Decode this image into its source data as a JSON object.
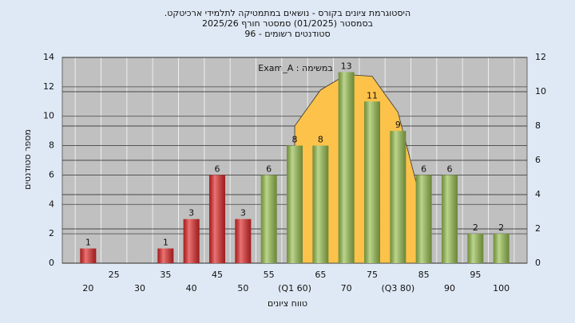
{
  "chart_data": {
    "type": "bar",
    "title": [
      "היסטוגרמת ציונים בקורס - נושאים במתמטיקה לתלמידי ארכיטקט.",
      "בסמסטר  (01/2025)  סמסטר חורף 2025/26",
      "סטודנטים רשומים - 96"
    ],
    "annotation": "במשימה : Exam_A",
    "x_label": "טווח ציונים",
    "y_label": "מספר סטודנטים",
    "categories": [
      "20",
      "25",
      "30",
      "35",
      "40",
      "45",
      "50",
      "55",
      "(Q1 60)",
      "65",
      "70",
      "75",
      "(Q3 80)",
      "85",
      "90",
      "95",
      "100"
    ],
    "values": [
      1,
      null,
      null,
      1,
      3,
      6,
      3,
      6,
      8,
      8,
      13,
      11,
      9,
      6,
      6,
      2,
      2
    ],
    "colors": [
      "#e02828",
      null,
      null,
      "#e02828",
      "#e02828",
      "#e02828",
      "#e02828",
      "#98c050",
      "#98c050",
      "#98c050",
      "#98c050",
      "#98c050",
      "#98c050",
      "#98c050",
      "#98c050",
      "#98c050",
      "#98c050"
    ],
    "area": {
      "color": "#fcc24a",
      "axis": "y2",
      "values": [
        null,
        null,
        null,
        null,
        null,
        null,
        null,
        null,
        8.0,
        10.1,
        11.0,
        10.9,
        8.8,
        3.0,
        null,
        null,
        null
      ]
    },
    "ylim": [
      0,
      14
    ],
    "yticks": [
      0,
      2,
      4,
      6,
      8,
      10,
      12,
      14
    ],
    "y2lim": [
      0,
      12
    ],
    "y2ticks": [
      0,
      2,
      4,
      6,
      8,
      10,
      12
    ],
    "grid": true
  }
}
